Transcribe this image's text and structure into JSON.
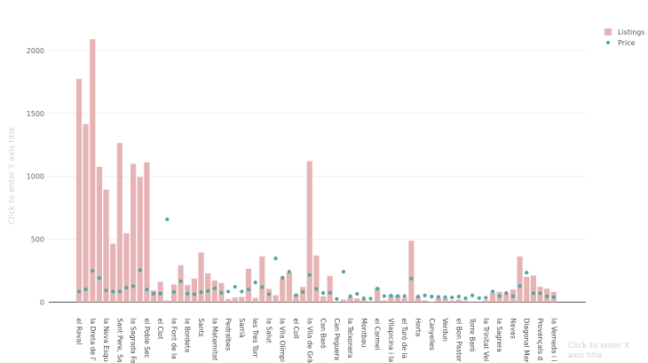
{
  "chart_data": {
    "type": "bar",
    "title": "",
    "xlabel": "Click to enter X axis title",
    "ylabel": "Click to enter Y axis title",
    "ylim": [
      0,
      2100
    ],
    "yticks": [
      0,
      500,
      1000,
      1500,
      2000
    ],
    "grid": true,
    "legend_position": "top-right",
    "categories": [
      "el Raval",
      "",
      "la Dreta de l'",
      "",
      "la Nova Esqu",
      "",
      "Sant Pere, Sa",
      "",
      "la Sagrada Fa",
      "",
      "el Poble Sec",
      "",
      "el Clot",
      "",
      "la Font de la",
      "",
      "la Bordeta",
      "",
      "Sants",
      "",
      "la Maternitat",
      "",
      "Pedralbes",
      "",
      "Sarrià",
      "",
      "les Tres Torr",
      "",
      "la Salut",
      "",
      "la Vila Olímpi",
      "",
      "el Coll",
      "",
      "la Vila de Grà",
      "",
      "Can Baró",
      "",
      "Can Peguera",
      "",
      "la Teixonera",
      "",
      "Montbau",
      "",
      "el Carmel",
      "",
      "Vilapicina i la",
      "",
      "el Turó de la",
      "",
      "Horta",
      "",
      "Canyelles",
      "",
      "Verdun",
      "",
      "el Bon Pastor",
      "",
      "Torre Baró",
      "",
      "la Trinitat Vel",
      "",
      "la Sagrera",
      "",
      "Navas",
      "",
      "Diagonal Mar",
      "",
      "Provençals d",
      "",
      "la Verneda i l"
    ],
    "series": [
      {
        "name": "Listings",
        "type": "bar",
        "color": "#e6b4b4",
        "values": [
          1775,
          1415,
          2090,
          1076,
          895,
          465,
          1265,
          548,
          1100,
          994,
          1112,
          94,
          164,
          14,
          141,
          294,
          136,
          188,
          395,
          230,
          172,
          153,
          26,
          38,
          42,
          266,
          35,
          364,
          106,
          56,
          188,
          235,
          61,
          122,
          1121,
          371,
          47,
          209,
          7,
          21,
          38,
          31,
          23,
          7,
          115,
          14,
          54,
          54,
          35,
          489,
          42,
          14,
          5,
          33,
          31,
          14,
          21,
          12,
          7,
          7,
          16,
          73,
          82,
          68,
          101,
          362,
          202,
          212,
          122,
          108,
          82
        ]
      },
      {
        "name": "Price",
        "type": "scatter",
        "color": "#4fa7a1",
        "values": [
          85,
          103,
          249,
          193,
          94,
          85,
          85,
          115,
          127,
          254,
          101,
          68,
          68,
          658,
          82,
          167,
          68,
          63,
          80,
          89,
          110,
          75,
          85,
          122,
          85,
          101,
          157,
          120,
          63,
          348,
          195,
          242,
          56,
          82,
          216,
          106,
          73,
          75,
          26,
          242,
          47,
          66,
          31,
          28,
          108,
          49,
          52,
          49,
          49,
          188,
          45,
          54,
          45,
          42,
          40,
          38,
          45,
          31,
          54,
          33,
          35,
          85,
          49,
          73,
          47,
          129,
          235,
          71,
          71,
          47,
          40
        ]
      }
    ]
  }
}
